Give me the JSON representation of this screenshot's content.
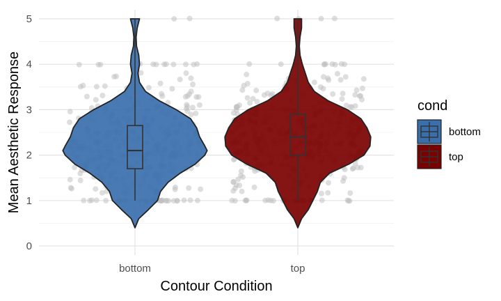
{
  "chart_data": {
    "type": "violin",
    "xlabel": "Contour Condition",
    "ylabel": "Mean Aesthetic Response",
    "categories": [
      "bottom",
      "top"
    ],
    "ylim": [
      0,
      5
    ],
    "yticks": [
      0,
      1,
      2,
      3,
      4,
      5
    ],
    "grid": true,
    "legend": {
      "title": "cond",
      "placement": "right",
      "entries": [
        {
          "label": "bottom",
          "color": "#3a6fac"
        },
        {
          "label": "top",
          "color": "#7b0000"
        }
      ]
    },
    "series": [
      {
        "name": "bottom",
        "color": "#3a6fac",
        "box": {
          "q1": 1.7,
          "median": 2.1,
          "q3": 2.65,
          "whisker_low": 1.0,
          "whisker_high": 5.0
        },
        "range": [
          0.4,
          5.0
        ],
        "density": [
          [
            0.4,
            0.0
          ],
          [
            0.6,
            0.05
          ],
          [
            0.8,
            0.18
          ],
          [
            1.0,
            0.3
          ],
          [
            1.2,
            0.34
          ],
          [
            1.4,
            0.44
          ],
          [
            1.6,
            0.6
          ],
          [
            1.8,
            0.8
          ],
          [
            2.0,
            0.93
          ],
          [
            2.1,
            0.96
          ],
          [
            2.2,
            0.93
          ],
          [
            2.4,
            0.86
          ],
          [
            2.6,
            0.82
          ],
          [
            2.8,
            0.74
          ],
          [
            3.0,
            0.55
          ],
          [
            3.2,
            0.32
          ],
          [
            3.4,
            0.14
          ],
          [
            3.6,
            0.06
          ],
          [
            3.8,
            0.04
          ],
          [
            4.0,
            0.06
          ],
          [
            4.2,
            0.05
          ],
          [
            4.4,
            0.02
          ],
          [
            4.6,
            0.015
          ],
          [
            4.8,
            0.03
          ],
          [
            5.0,
            0.06
          ]
        ]
      },
      {
        "name": "top",
        "color": "#7b0000",
        "box": {
          "q1": 2.0,
          "median": 2.4,
          "q3": 2.9,
          "whisker_low": 1.0,
          "whisker_high": 5.0
        },
        "range": [
          0.4,
          5.0
        ],
        "density": [
          [
            0.4,
            0.0
          ],
          [
            0.6,
            0.05
          ],
          [
            0.8,
            0.14
          ],
          [
            1.0,
            0.2
          ],
          [
            1.2,
            0.26
          ],
          [
            1.4,
            0.3
          ],
          [
            1.6,
            0.42
          ],
          [
            1.8,
            0.68
          ],
          [
            2.0,
            0.88
          ],
          [
            2.2,
            0.96
          ],
          [
            2.4,
            0.97
          ],
          [
            2.6,
            0.92
          ],
          [
            2.8,
            0.84
          ],
          [
            3.0,
            0.66
          ],
          [
            3.2,
            0.4
          ],
          [
            3.4,
            0.22
          ],
          [
            3.6,
            0.14
          ],
          [
            3.8,
            0.1
          ],
          [
            4.0,
            0.06
          ],
          [
            4.2,
            0.03
          ],
          [
            4.4,
            0.02
          ],
          [
            4.6,
            0.03
          ],
          [
            4.8,
            0.05
          ],
          [
            5.0,
            0.05
          ]
        ]
      }
    ],
    "jitter_points": {
      "note_values": [
        1,
        1.25,
        1.5,
        1.75,
        2,
        2.25,
        2.5,
        2.75,
        3,
        3.25,
        3.5,
        3.75,
        4,
        5
      ],
      "color": "#bdbdbd",
      "opacity": 0.5
    }
  }
}
